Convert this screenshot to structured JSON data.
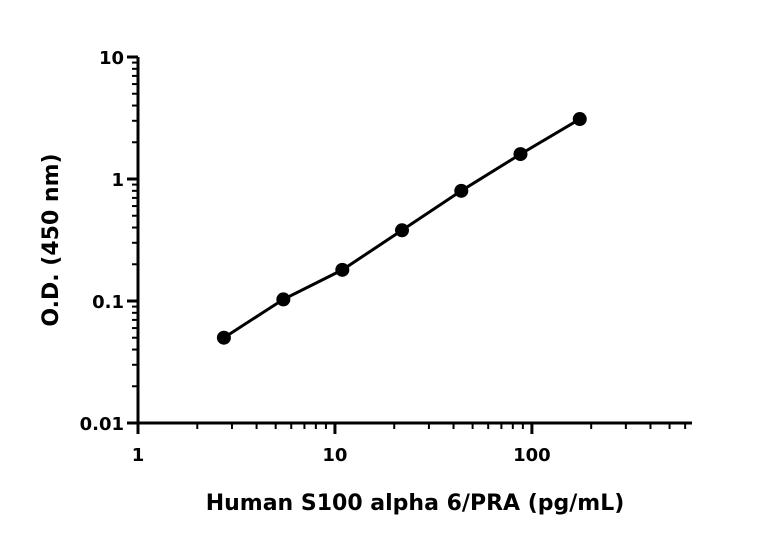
{
  "chart_data": {
    "type": "scatter",
    "title": "",
    "xlabel": "Human S100 alpha 6/PRA (pg/mL)",
    "ylabel": "O.D. (450 nm)",
    "xscale": "log",
    "yscale": "log",
    "xlim": [
      1,
      650
    ],
    "ylim": [
      0.01,
      10
    ],
    "x_ticks": [
      1,
      10,
      100
    ],
    "x_tick_labels": [
      "1",
      "10",
      "100"
    ],
    "y_ticks": [
      0.01,
      0.1,
      1,
      10
    ],
    "y_tick_labels": [
      "0.01",
      "0.1",
      "1",
      "10"
    ],
    "grid": false,
    "legend": "none",
    "line_color": "#000000",
    "marker_color": "#000000",
    "series": [
      {
        "x": [
          2.73,
          5.47,
          10.9,
          21.9,
          43.8,
          87.5,
          175
        ],
        "y": [
          0.05,
          0.103,
          0.18,
          0.38,
          0.8,
          1.6,
          3.1
        ]
      }
    ]
  }
}
